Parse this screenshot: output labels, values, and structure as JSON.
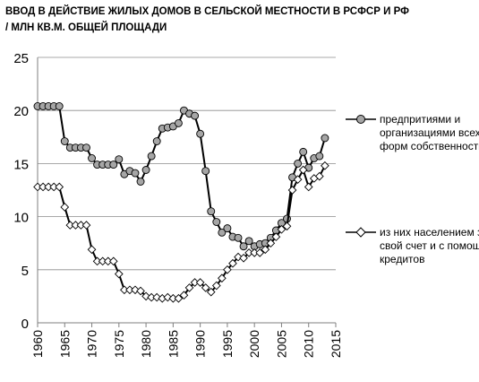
{
  "chart_data": {
    "type": "line",
    "title_line1": "ВВОД В ДЕЙСТВИЕ ЖИЛЫХ ДОМОВ В СЕЛЬСКОЙ МЕСТНОСТИ В  РСФСР И  РФ",
    "title_line2": "/  МЛН КВ.М. ОБЩЕЙ ПЛОЩАДИ",
    "xlim": [
      1960,
      2015
    ],
    "ylim": [
      0,
      25
    ],
    "x_ticks": [
      "1960",
      "1965",
      "1970",
      "1975",
      "1980",
      "1985",
      "1990",
      "1995",
      "2000",
      "2005",
      "2010",
      "2015"
    ],
    "y_ticks": [
      "0",
      "5",
      "10",
      "15",
      "20",
      "25"
    ],
    "grid": "horizontal",
    "legend_placement": "right",
    "series": [
      {
        "name": "предпритиями и организациями всех форм собственности",
        "marker": "circle",
        "color": "#000000",
        "marker_fill": "#a6a6a6",
        "x": [
          1960,
          1961,
          1962,
          1963,
          1964,
          1965,
          1966,
          1967,
          1968,
          1969,
          1970,
          1971,
          1972,
          1973,
          1974,
          1975,
          1976,
          1977,
          1978,
          1979,
          1980,
          1981,
          1982,
          1983,
          1984,
          1985,
          1986,
          1987,
          1988,
          1989,
          1990,
          1991,
          1992,
          1993,
          1994,
          1995,
          1996,
          1997,
          1998,
          1999,
          2000,
          2001,
          2002,
          2003,
          2004,
          2005,
          2006,
          2007,
          2008,
          2009,
          2010,
          2011,
          2012,
          2013
        ],
        "values": [
          20.4,
          20.4,
          20.4,
          20.4,
          20.4,
          17.1,
          16.5,
          16.5,
          16.5,
          16.5,
          15.5,
          14.9,
          14.9,
          14.9,
          14.9,
          15.4,
          14.0,
          14.3,
          14.1,
          13.3,
          14.4,
          15.7,
          17.1,
          18.3,
          18.4,
          18.5,
          18.8,
          20.0,
          19.7,
          19.5,
          17.8,
          14.3,
          10.5,
          9.5,
          8.5,
          8.9,
          8.1,
          8.0,
          7.2,
          7.7,
          7.2,
          7.4,
          7.5,
          8.0,
          8.7,
          9.4,
          9.8,
          13.7,
          15.0,
          16.1,
          14.6,
          15.5,
          15.7,
          17.4
        ]
      },
      {
        "name": "из них населением за свой счет и с помощью кредитов",
        "marker": "diamond",
        "color": "#000000",
        "marker_fill": "#ffffff",
        "x": [
          1960,
          1961,
          1962,
          1963,
          1964,
          1965,
          1966,
          1967,
          1968,
          1969,
          1970,
          1971,
          1972,
          1973,
          1974,
          1975,
          1976,
          1977,
          1978,
          1979,
          1980,
          1981,
          1982,
          1983,
          1984,
          1985,
          1986,
          1987,
          1988,
          1989,
          1990,
          1991,
          1992,
          1993,
          1994,
          1995,
          1996,
          1997,
          1998,
          1999,
          2000,
          2001,
          2002,
          2003,
          2004,
          2005,
          2006,
          2007,
          2008,
          2009,
          2010,
          2011,
          2012,
          2013
        ],
        "values": [
          12.8,
          12.8,
          12.8,
          12.8,
          12.8,
          10.9,
          9.2,
          9.2,
          9.2,
          9.2,
          6.9,
          5.8,
          5.8,
          5.8,
          5.8,
          4.6,
          3.1,
          3.1,
          3.1,
          3.0,
          2.5,
          2.4,
          2.4,
          2.3,
          2.4,
          2.3,
          2.3,
          2.6,
          3.3,
          3.8,
          3.8,
          3.3,
          2.9,
          3.5,
          4.2,
          5.0,
          5.6,
          6.2,
          6.1,
          6.6,
          6.6,
          6.6,
          6.9,
          7.5,
          8.1,
          8.8,
          9.1,
          12.5,
          13.5,
          14.4,
          12.8,
          13.6,
          13.8,
          14.8
        ]
      }
    ]
  }
}
